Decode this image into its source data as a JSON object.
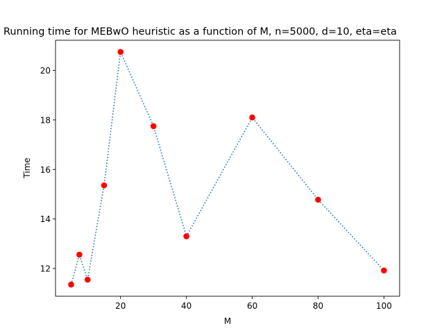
{
  "chart_data": {
    "type": "line",
    "title": "Running time for MEBwO heuristic as a function of M, n=5000, d=10, eta=eta",
    "xlabel": "M",
    "ylabel": "Time",
    "xlim": [
      0.25,
      104.75
    ],
    "ylim": [
      10.88,
      21.22
    ],
    "xticks": [
      20,
      40,
      60,
      80,
      100
    ],
    "yticks": [
      12,
      14,
      16,
      18,
      20
    ],
    "grid": false,
    "legend": "none",
    "series": [
      {
        "x": [
          5,
          7.5,
          10,
          15,
          20,
          30,
          40,
          60,
          80,
          100
        ],
        "y": [
          11.35,
          12.56,
          11.55,
          15.36,
          20.75,
          17.75,
          13.3,
          18.1,
          14.78,
          11.92
        ],
        "line_color": "#1f77b4",
        "line_style": "dotted",
        "marker_color": "#ff0000",
        "marker": "circle"
      }
    ]
  }
}
